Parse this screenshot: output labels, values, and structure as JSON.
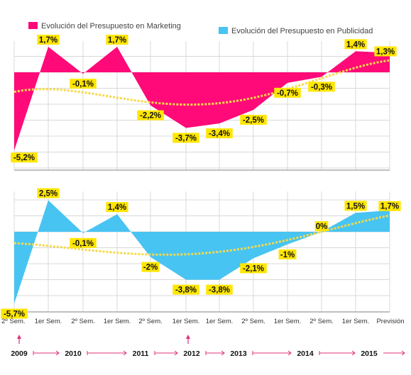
{
  "colors": {
    "marketing": "#ff0a78",
    "publicidad": "#48c4f2",
    "trend": "#f6d94a",
    "label_bg": "#ffe600",
    "grid": "#d8d8d8",
    "axis": "#9a9a9a",
    "timeline": "#e0307a"
  },
  "chart_data": [
    {
      "type": "area",
      "title": "",
      "series": [
        {
          "name": "Evolución del Presupuesto en Marketing",
          "values": [
            -5.2,
            1.7,
            -0.1,
            1.7,
            -2.2,
            -3.7,
            -3.4,
            -2.5,
            -0.7,
            -0.3,
            1.4,
            1.3
          ],
          "labels": [
            "-5,2%",
            "1,7%",
            "-0,1%",
            "1,7%",
            "-2,2%",
            "-3,7%",
            "-3,4%",
            "-2,5%",
            "-0,7%",
            "-0,3%",
            "1,4%",
            "1,3%"
          ]
        }
      ],
      "ylim": [
        -6,
        2
      ],
      "grid": true
    },
    {
      "type": "area",
      "title": "",
      "series": [
        {
          "name": "Evolución del Presupuesto en Publicidad",
          "values": [
            -5.7,
            2.5,
            -0.1,
            1.4,
            -2.0,
            -3.8,
            -3.8,
            -2.1,
            -1.0,
            0.0,
            1.5,
            1.7
          ],
          "labels": [
            "-5,7%",
            "2,5%",
            "-0,1%",
            "1,4%",
            "-2%",
            "-3,8%",
            "-3,8%",
            "-2,1%",
            "-1%",
            "0%",
            "1,5%",
            "1,7%"
          ]
        }
      ],
      "ylim": [
        -6,
        3
      ],
      "grid": true
    }
  ],
  "x_axis": {
    "categories": [
      "2º Sem.",
      "1er Sem.",
      "2º Sem.",
      "1er Sem.",
      "2º Sem.",
      "1er Sem.",
      "1er Sem.",
      "2º Sem.",
      "1er Sem.",
      "2º Sem.",
      "1er Sem.",
      "Previsión"
    ]
  },
  "timeline": {
    "years": [
      "2009",
      "2010",
      "2011",
      "2012",
      "2013",
      "2014",
      "2015"
    ]
  }
}
